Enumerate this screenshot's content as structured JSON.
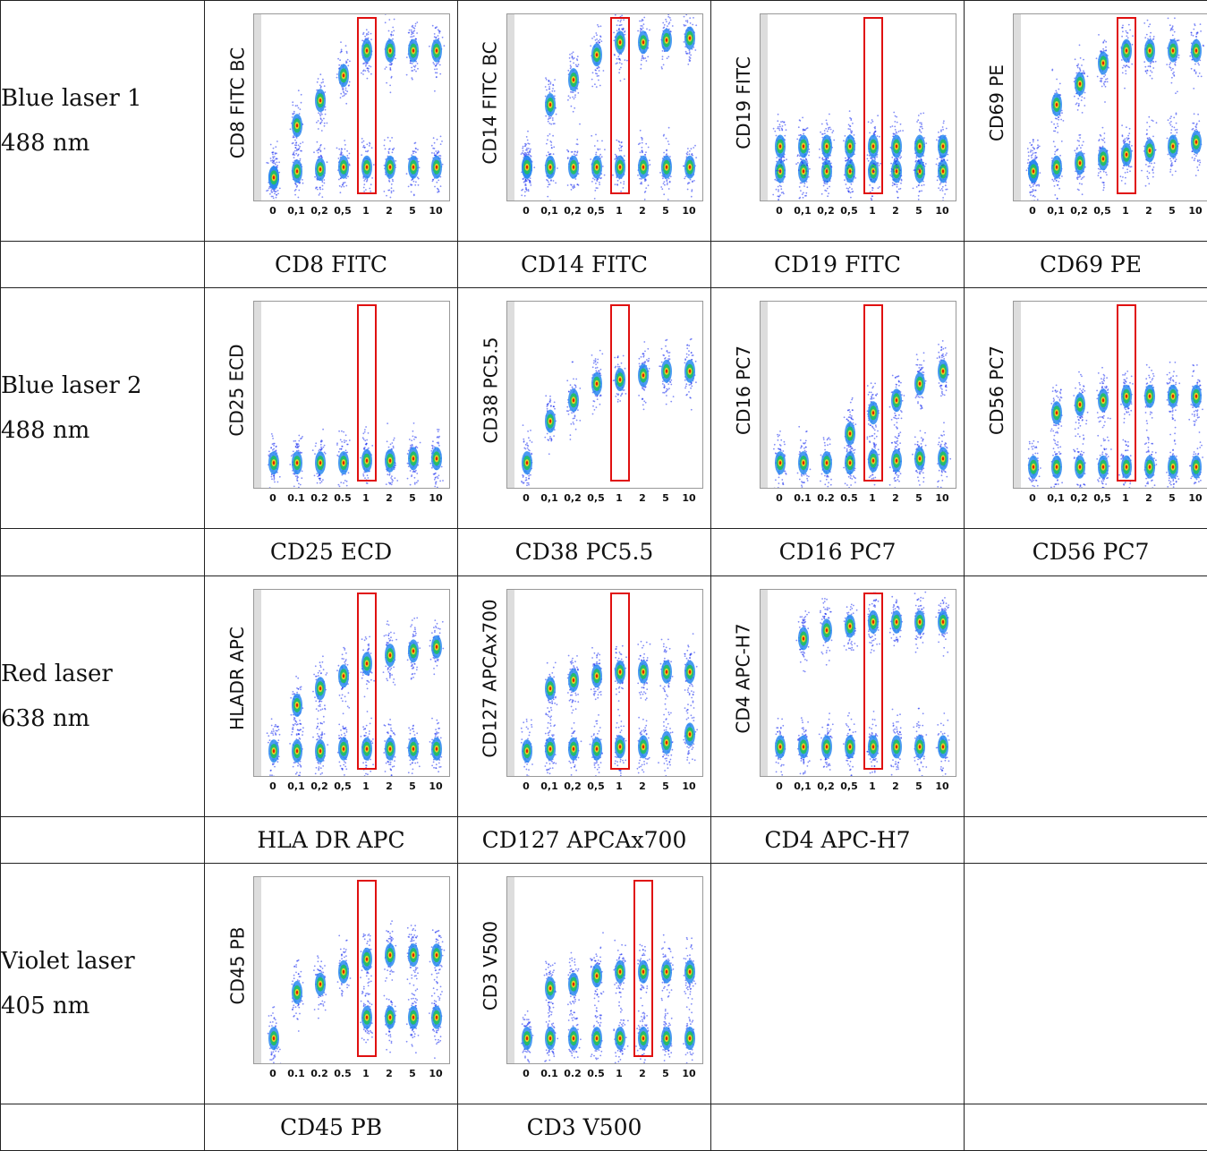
{
  "colors": {
    "gate": "#e01010",
    "low_density": "#1a2ef0",
    "high_density": "#e02000"
  },
  "rows": [
    {
      "laser_name": "Blue laser 1",
      "laser_wavelength": "488 nm",
      "plots": [
        {
          "ylabel": "CD8 FITC BC",
          "caption": "CD8 FITC",
          "ticks": [
            "0",
            "0,1",
            "0,2",
            "0,5",
            "1",
            "2",
            "5",
            "10"
          ],
          "gated_tick": "1",
          "chart_data": {
            "type": "scatter",
            "categories": [
              "0",
              "0,1",
              "0,2",
              "0,5",
              "1",
              "2",
              "5",
              "10"
            ],
            "populations": [
              {
                "name": "",
                "values": [
                  0.25,
                  1.5,
                  2.1,
                  2.7,
                  3.3,
                  3.3,
                  3.3,
                  3.3
                ]
              },
              {
                "name": "",
                "values": [
                  0.25,
                  0.4,
                  0.45,
                  0.5,
                  0.5,
                  0.5,
                  0.5,
                  0.5
                ]
              }
            ]
          }
        },
        {
          "ylabel": "CD14 FITC BC",
          "caption": "CD14 FITC",
          "ticks": [
            "0",
            "0,1",
            "0,2",
            "0,5",
            "1",
            "2",
            "5",
            "10"
          ],
          "gated_tick": "1",
          "chart_data": {
            "type": "scatter",
            "categories": [
              "0",
              "0,1",
              "0,2",
              "0,5",
              "1",
              "2",
              "5",
              "10"
            ],
            "populations": [
              {
                "name": "",
                "values": [
                  0.5,
                  2.0,
                  2.6,
                  3.2,
                  3.5,
                  3.5,
                  3.55,
                  3.6
                ]
              },
              {
                "name": "",
                "values": [
                  0.5,
                  0.5,
                  0.5,
                  0.5,
                  0.5,
                  0.5,
                  0.5,
                  0.5
                ]
              }
            ]
          }
        },
        {
          "ylabel": "CD19 FITC",
          "caption": "CD19 FITC",
          "ticks": [
            "0",
            "0,1",
            "0,2",
            "0,5",
            "1",
            "2",
            "5",
            "10"
          ],
          "gated_tick": "1",
          "chart_data": {
            "type": "scatter",
            "categories": [
              "0",
              "0,1",
              "0,2",
              "0,5",
              "1",
              "2",
              "5",
              "10"
            ],
            "populations": [
              {
                "name": "",
                "values": [
                  0.4,
                  0.4,
                  0.4,
                  0.4,
                  0.4,
                  0.4,
                  0.4,
                  0.4
                ]
              },
              {
                "name": "",
                "values": [
                  1.0,
                  1.0,
                  1.0,
                  1.0,
                  1.0,
                  1.0,
                  1.0,
                  1.0
                ]
              }
            ]
          }
        },
        {
          "ylabel": "CD69 PE",
          "caption": "CD69 PE",
          "ticks": [
            "0",
            "0,1",
            "0,2",
            "0,5",
            "1",
            "2",
            "5",
            "10"
          ],
          "gated_tick": "1",
          "chart_data": {
            "type": "scatter",
            "categories": [
              "0",
              "0,1",
              "0,2",
              "0,5",
              "1",
              "2",
              "5",
              "10"
            ],
            "populations": [
              {
                "name": "",
                "values": [
                  0.4,
                  2.0,
                  2.5,
                  3.0,
                  3.3,
                  3.3,
                  3.3,
                  3.3
                ]
              },
              {
                "name": "",
                "values": [
                  0.4,
                  0.5,
                  0.6,
                  0.7,
                  0.8,
                  0.9,
                  1.0,
                  1.1
                ]
              }
            ]
          }
        }
      ]
    },
    {
      "laser_name": "Blue laser 2",
      "laser_wavelength": "488 nm",
      "plots": [
        {
          "ylabel": "CD25 ECD",
          "caption": "CD25 ECD",
          "ticks": [
            "0",
            "0.1",
            "0.2",
            "0.5",
            "1",
            "2",
            "5",
            "10"
          ],
          "gated_tick": "1",
          "chart_data": {
            "type": "scatter",
            "categories": [
              "0",
              "0.1",
              "0.2",
              "0.5",
              "1",
              "2",
              "5",
              "10"
            ],
            "populations": [
              {
                "name": "",
                "values": [
                  0.3,
                  0.3,
                  0.3,
                  0.3,
                  0.35,
                  0.35,
                  0.4,
                  0.4
                ]
              }
            ]
          }
        },
        {
          "ylabel": "CD38 PC5.5",
          "caption": "CD38 PC5.5",
          "ticks": [
            "0",
            "0,1",
            "0,2",
            "0,5",
            "1",
            "2",
            "5",
            "10"
          ],
          "gated_tick": "1",
          "chart_data": {
            "type": "scatter",
            "categories": [
              "0",
              "0,1",
              "0,2",
              "0,5",
              "1",
              "2",
              "5",
              "10"
            ],
            "populations": [
              {
                "name": "",
                "values": [
                  0.3,
                  1.3,
                  1.8,
                  2.2,
                  2.3,
                  2.4,
                  2.5,
                  2.5
                ]
              }
            ]
          }
        },
        {
          "ylabel": "CD16 PC7",
          "caption": "CD16 PC7",
          "ticks": [
            "0",
            "0.1",
            "0.2",
            "0.5",
            "1",
            "2",
            "5",
            "10"
          ],
          "gated_tick": "1",
          "chart_data": {
            "type": "scatter",
            "categories": [
              "0",
              "0.1",
              "0.2",
              "0.5",
              "1",
              "2",
              "5",
              "10"
            ],
            "populations": [
              {
                "name": "",
                "values": [
                  0.3,
                  0.3,
                  0.3,
                  0.3,
                  0.35,
                  0.35,
                  0.4,
                  0.4
                ]
              },
              {
                "name": "",
                "values": [
                  null,
                  null,
                  null,
                  1.0,
                  1.5,
                  1.8,
                  2.2,
                  2.5
                ]
              }
            ]
          }
        },
        {
          "ylabel": "CD56 PC7",
          "caption": "CD56 PC7",
          "ticks": [
            "0",
            "0,1",
            "0,2",
            "0,5",
            "1",
            "2",
            "5",
            "10"
          ],
          "gated_tick": "1",
          "chart_data": {
            "type": "scatter",
            "categories": [
              "0",
              "0,1",
              "0,2",
              "0,5",
              "1",
              "2",
              "5",
              "10"
            ],
            "populations": [
              {
                "name": "",
                "values": [
                  0.2,
                  0.2,
                  0.2,
                  0.2,
                  0.2,
                  0.2,
                  0.2,
                  0.2
                ]
              },
              {
                "name": "",
                "values": [
                  null,
                  1.5,
                  1.7,
                  1.8,
                  1.9,
                  1.9,
                  1.9,
                  1.9
                ]
              }
            ]
          }
        }
      ]
    },
    {
      "laser_name": "Red laser",
      "laser_wavelength": "638 nm",
      "plots": [
        {
          "ylabel": "HLADR APC",
          "caption": "HLA DR APC",
          "ticks": [
            "0",
            "0,1",
            "0,2",
            "0,5",
            "1",
            "2",
            "5",
            "10"
          ],
          "gated_tick": "1",
          "chart_data": {
            "type": "scatter",
            "categories": [
              "0",
              "0,1",
              "0,2",
              "0,5",
              "1",
              "2",
              "5",
              "10"
            ],
            "populations": [
              {
                "name": "",
                "values": [
                  0.3,
                  0.3,
                  0.3,
                  0.35,
                  0.35,
                  0.35,
                  0.35,
                  0.35
                ]
              },
              {
                "name": "",
                "values": [
                  null,
                  1.4,
                  1.8,
                  2.1,
                  2.4,
                  2.6,
                  2.7,
                  2.8
                ]
              }
            ]
          }
        },
        {
          "ylabel": "CD127 APCAx700",
          "caption": "CD127 APCAx700",
          "ticks": [
            "0",
            "0,1",
            "0,2",
            "0,5",
            "1",
            "2",
            "5",
            "10"
          ],
          "gated_tick": "1",
          "chart_data": {
            "type": "scatter",
            "categories": [
              "0",
              "0,1",
              "0,2",
              "0,5",
              "1",
              "2",
              "5",
              "10"
            ],
            "populations": [
              {
                "name": "",
                "values": [
                  0.3,
                  0.35,
                  0.35,
                  0.35,
                  0.4,
                  0.4,
                  0.5,
                  0.7
                ]
              },
              {
                "name": "",
                "values": [
                  null,
                  1.8,
                  2.0,
                  2.1,
                  2.2,
                  2.2,
                  2.2,
                  2.2
                ]
              }
            ]
          }
        },
        {
          "ylabel": "CD4 APC-H7",
          "caption": "CD4 APC-H7",
          "ticks": [
            "0",
            "0,1",
            "0,2",
            "0,5",
            "1",
            "2",
            "5",
            "10"
          ],
          "gated_tick": "1",
          "chart_data": {
            "type": "scatter",
            "categories": [
              "0",
              "0,1",
              "0,2",
              "0,5",
              "1",
              "2",
              "5",
              "10"
            ],
            "populations": [
              {
                "name": "",
                "values": [
                  0.4,
                  0.4,
                  0.4,
                  0.4,
                  0.4,
                  0.4,
                  0.4,
                  0.4
                ]
              },
              {
                "name": "",
                "values": [
                  null,
                  3.0,
                  3.2,
                  3.3,
                  3.4,
                  3.4,
                  3.4,
                  3.4
                ]
              }
            ]
          }
        }
      ]
    },
    {
      "laser_name": "Violet laser",
      "laser_wavelength": "405 nm",
      "plots": [
        {
          "ylabel": "CD45 PB",
          "caption": "CD45 PB",
          "ticks": [
            "0",
            "0.1",
            "0.2",
            "0.5",
            "1",
            "2",
            "5",
            "10"
          ],
          "gated_tick": "1",
          "chart_data": {
            "type": "scatter",
            "categories": [
              "0",
              "0.1",
              "0.2",
              "0.5",
              "1",
              "2",
              "5",
              "10"
            ],
            "populations": [
              {
                "name": "",
                "values": [
                  0.3,
                  1.4,
                  1.6,
                  1.9,
                  2.2,
                  2.3,
                  2.3,
                  2.3
                ]
              },
              {
                "name": "",
                "values": [
                  null,
                  null,
                  null,
                  null,
                  0.8,
                  0.8,
                  0.8,
                  0.8
                ]
              }
            ]
          }
        },
        {
          "ylabel": "CD3 V500",
          "caption": "CD3 V500",
          "ticks": [
            "0",
            "0.1",
            "0.2",
            "0.5",
            "1",
            "2",
            "5",
            "10"
          ],
          "gated_tick": "2",
          "chart_data": {
            "type": "scatter",
            "categories": [
              "0",
              "0.1",
              "0.2",
              "0.5",
              "1",
              "2",
              "5",
              "10"
            ],
            "populations": [
              {
                "name": "",
                "values": [
                  0.3,
                  0.3,
                  0.3,
                  0.3,
                  0.3,
                  0.3,
                  0.3,
                  0.3
                ]
              },
              {
                "name": "",
                "values": [
                  null,
                  1.5,
                  1.6,
                  1.8,
                  1.9,
                  1.9,
                  1.9,
                  1.9
                ]
              }
            ]
          }
        }
      ]
    }
  ]
}
